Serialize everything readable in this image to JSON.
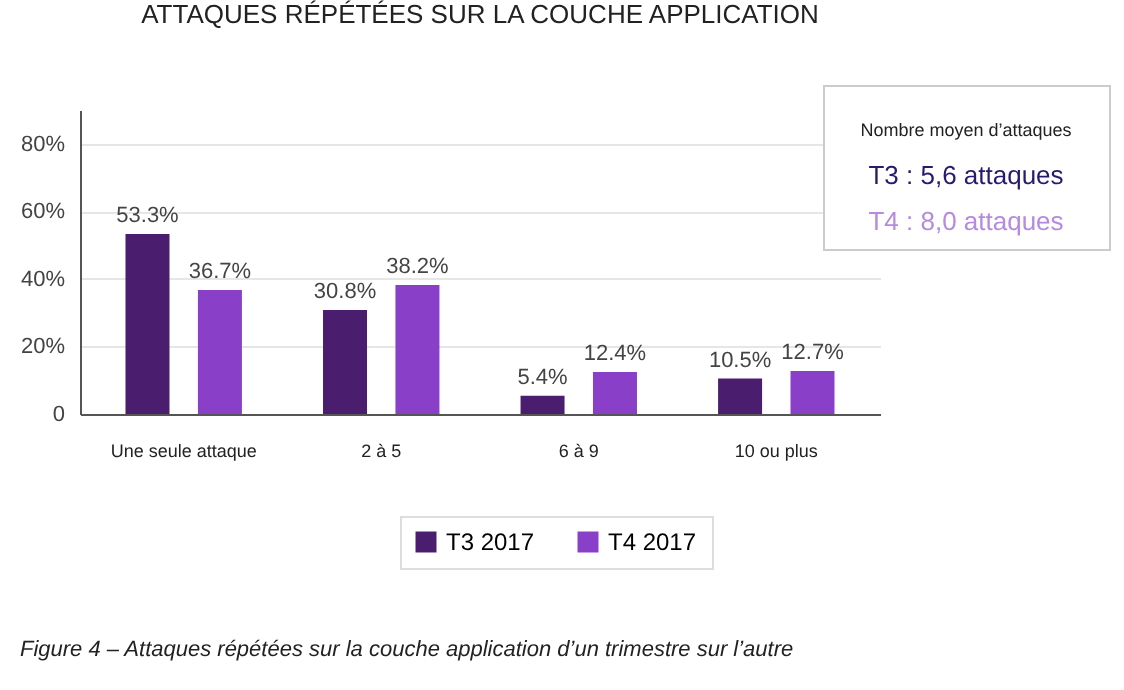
{
  "chart_data": {
    "type": "bar",
    "title": "ATTAQUES RÉPÉTÉES SUR LA COUCHE APPLICATION",
    "categories": [
      "Une seule attaque",
      "2 à 5",
      "6 à 9",
      "10 ou plus"
    ],
    "series": [
      {
        "name": "T3 2017",
        "color": "#4a1d6e",
        "values": [
          53.3,
          30.8,
          5.4,
          10.5
        ]
      },
      {
        "name": "T4 2017",
        "color": "#8a3fc8",
        "values": [
          36.7,
          38.2,
          12.4,
          12.7
        ]
      }
    ],
    "value_labels": [
      [
        "53.3%",
        "30.8%",
        "5.4%",
        "10.5%"
      ],
      [
        "36.7%",
        "38.2%",
        "12.4%",
        "12.7%"
      ]
    ],
    "ylim": [
      0,
      90
    ],
    "yticks": [
      {
        "value": 0,
        "label": "0"
      },
      {
        "value": 20,
        "label": "20%"
      },
      {
        "value": 40,
        "label": "40%"
      },
      {
        "value": 60,
        "label": "60%"
      },
      {
        "value": 80,
        "label": "80%"
      }
    ],
    "grid": "y",
    "legend": "bottom",
    "annotations": [
      "Nombre moyen d’attaques",
      "T3 : 5,6 attaques",
      "T4 : 8,0 attaques",
      "Figure 4 – Attaques répétées sur la couche application d’un trimestre sur l’autre"
    ]
  }
}
